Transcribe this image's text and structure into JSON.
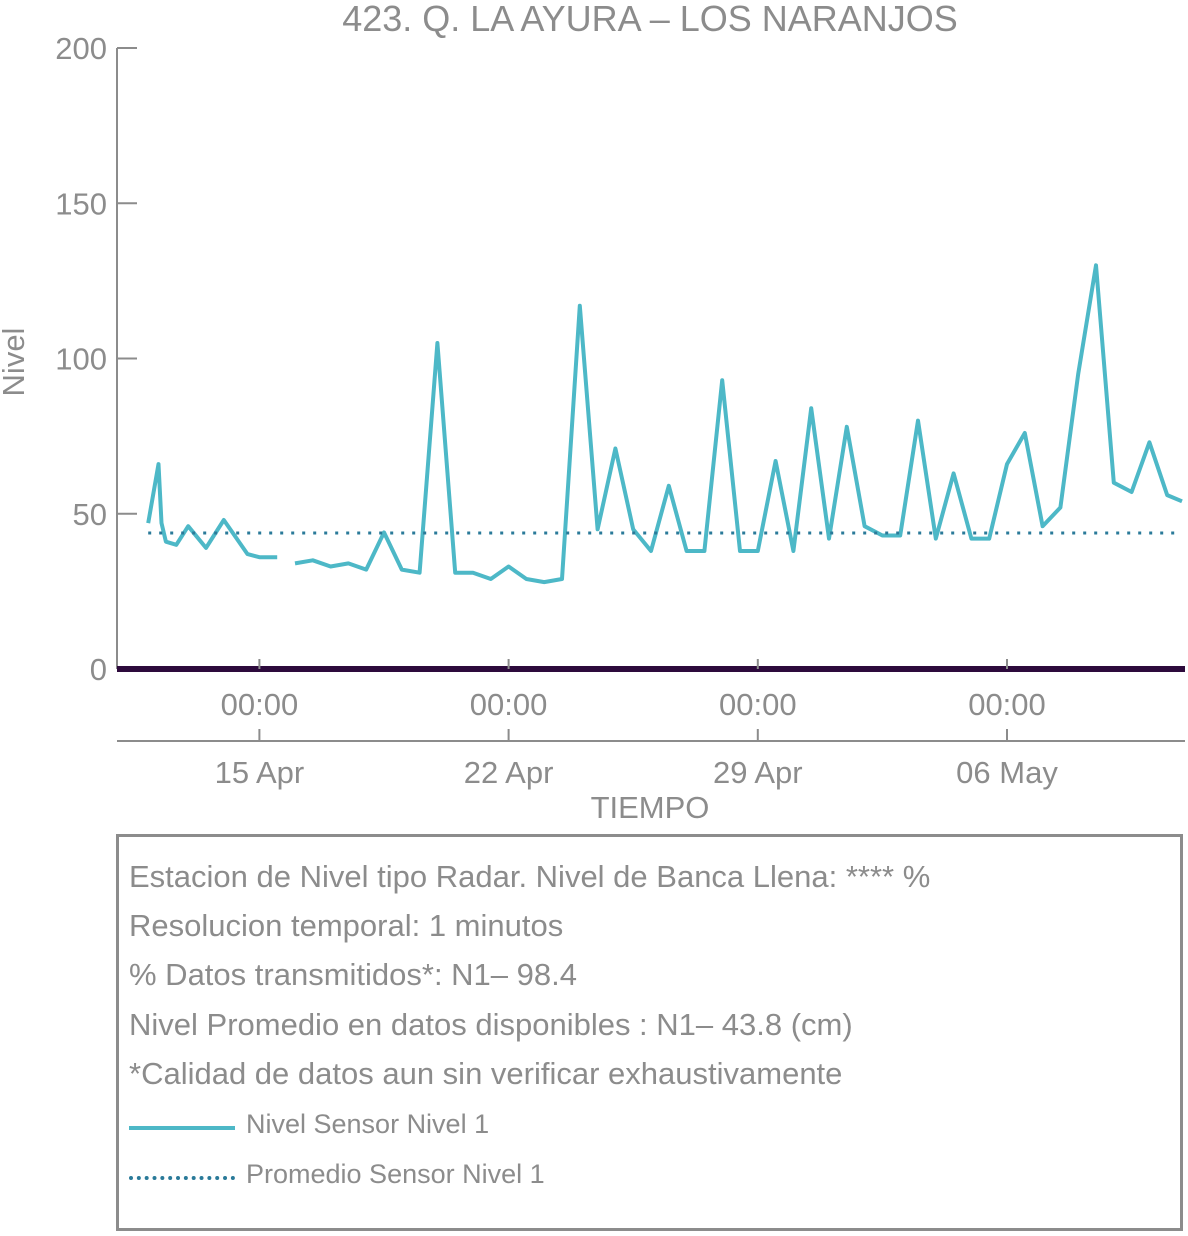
{
  "chart_data": {
    "type": "line",
    "title": "423. Q. LA AYURA – LOS NARANJOS",
    "xlabel": "TIEMPO",
    "ylabel": "Nivel",
    "ylim": [
      0,
      200
    ],
    "xlim": [
      "2024-04-11 00:00",
      "2024-05-11 00:00"
    ],
    "y_ticks": [
      "0",
      "50",
      "100",
      "150",
      "200"
    ],
    "x_ticks_time": [
      "00:00",
      "00:00",
      "00:00",
      "00:00"
    ],
    "x_ticks_date": [
      "15 Apr",
      "22 Apr",
      "29 Apr",
      "06 May"
    ],
    "x_tick_dates": [
      "2024-04-15 00:00",
      "2024-04-22 00:00",
      "2024-04-29 00:00",
      "2024-05-06 00:00"
    ],
    "grid": false,
    "series": [
      {
        "name": "Nivel Sensor Nivel 1",
        "style": "solid",
        "color": "#4db8c7",
        "x": [
          "2024-04-11 21:00",
          "2024-04-12 04:00",
          "2024-04-12 06:00",
          "2024-04-12 09:00",
          "2024-04-12 16:00",
          "2024-04-13 00:00",
          "2024-04-13 12:00",
          "2024-04-14 00:00",
          "2024-04-14 16:00",
          "2024-04-15 00:00",
          "2024-04-15 12:00",
          "2024-04-15 16:00",
          "2024-04-16 00:00",
          "2024-04-16 12:00",
          "2024-04-17 00:00",
          "2024-04-17 12:00",
          "2024-04-18 00:00",
          "2024-04-18 12:00",
          "2024-04-19 00:00",
          "2024-04-19 12:00",
          "2024-04-20 00:00",
          "2024-04-20 12:00",
          "2024-04-21 00:00",
          "2024-04-21 12:00",
          "2024-04-22 00:00",
          "2024-04-22 12:00",
          "2024-04-23 00:00",
          "2024-04-23 12:00",
          "2024-04-24 00:00",
          "2024-04-24 12:00",
          "2024-04-25 00:00",
          "2024-04-25 12:00",
          "2024-04-26 00:00",
          "2024-04-26 12:00",
          "2024-04-27 00:00",
          "2024-04-27 12:00",
          "2024-04-28 00:00",
          "2024-04-28 12:00",
          "2024-04-29 00:00",
          "2024-04-29 12:00",
          "2024-04-30 00:00",
          "2024-04-30 12:00",
          "2024-05-01 00:00",
          "2024-05-01 12:00",
          "2024-05-02 00:00",
          "2024-05-02 12:00",
          "2024-05-03 00:00",
          "2024-05-03 12:00",
          "2024-05-04 00:00",
          "2024-05-04 12:00",
          "2024-05-05 00:00",
          "2024-05-05 12:00",
          "2024-05-06 00:00",
          "2024-05-06 12:00",
          "2024-05-07 00:00",
          "2024-05-07 12:00",
          "2024-05-08 00:00",
          "2024-05-08 12:00",
          "2024-05-09 00:00",
          "2024-05-09 12:00",
          "2024-05-10 00:00",
          "2024-05-10 12:00",
          "2024-05-10 22:00"
        ],
        "y": [
          47,
          66,
          47,
          41,
          40,
          46,
          39,
          48,
          37,
          36,
          36,
          null,
          34,
          35,
          33,
          34,
          32,
          44,
          32,
          31,
          105,
          31,
          31,
          29,
          33,
          29,
          28,
          29,
          117,
          45,
          71,
          45,
          38,
          59,
          38,
          38,
          93,
          38,
          38,
          67,
          38,
          84,
          42,
          78,
          46,
          43,
          43,
          80,
          42,
          63,
          42,
          42,
          66,
          76,
          46,
          52,
          95,
          130,
          60,
          57,
          73,
          56,
          54
        ]
      },
      {
        "name": "Promedio Sensor Nivel 1",
        "style": "dotted",
        "color": "#2a7a99",
        "x": [
          "2024-04-11 21:00",
          "2024-05-10 22:00"
        ],
        "y": [
          43.8,
          43.8
        ]
      }
    ]
  },
  "info": {
    "line1": "Estacion de Nivel tipo Radar. Nivel de Banca Llena: **** %",
    "line2": "Resolucion temporal: 1 minutos",
    "line3": "% Datos transmitidos*: N1– 98.4",
    "line4": "Nivel Promedio en datos disponibles : N1– 43.8 (cm)",
    "line5": "*Calidad de datos aun sin verificar exhaustivamente"
  },
  "legend": {
    "solid_label": "Nivel Sensor Nivel 1",
    "dotted_label": "Promedio Sensor Nivel 1"
  },
  "colors": {
    "text": "#8c8c8c",
    "axis": "#8c8c8c",
    "baseline": "#2d0a3c",
    "series_solid": "#4db8c7",
    "series_mean": "#2a7a99"
  }
}
